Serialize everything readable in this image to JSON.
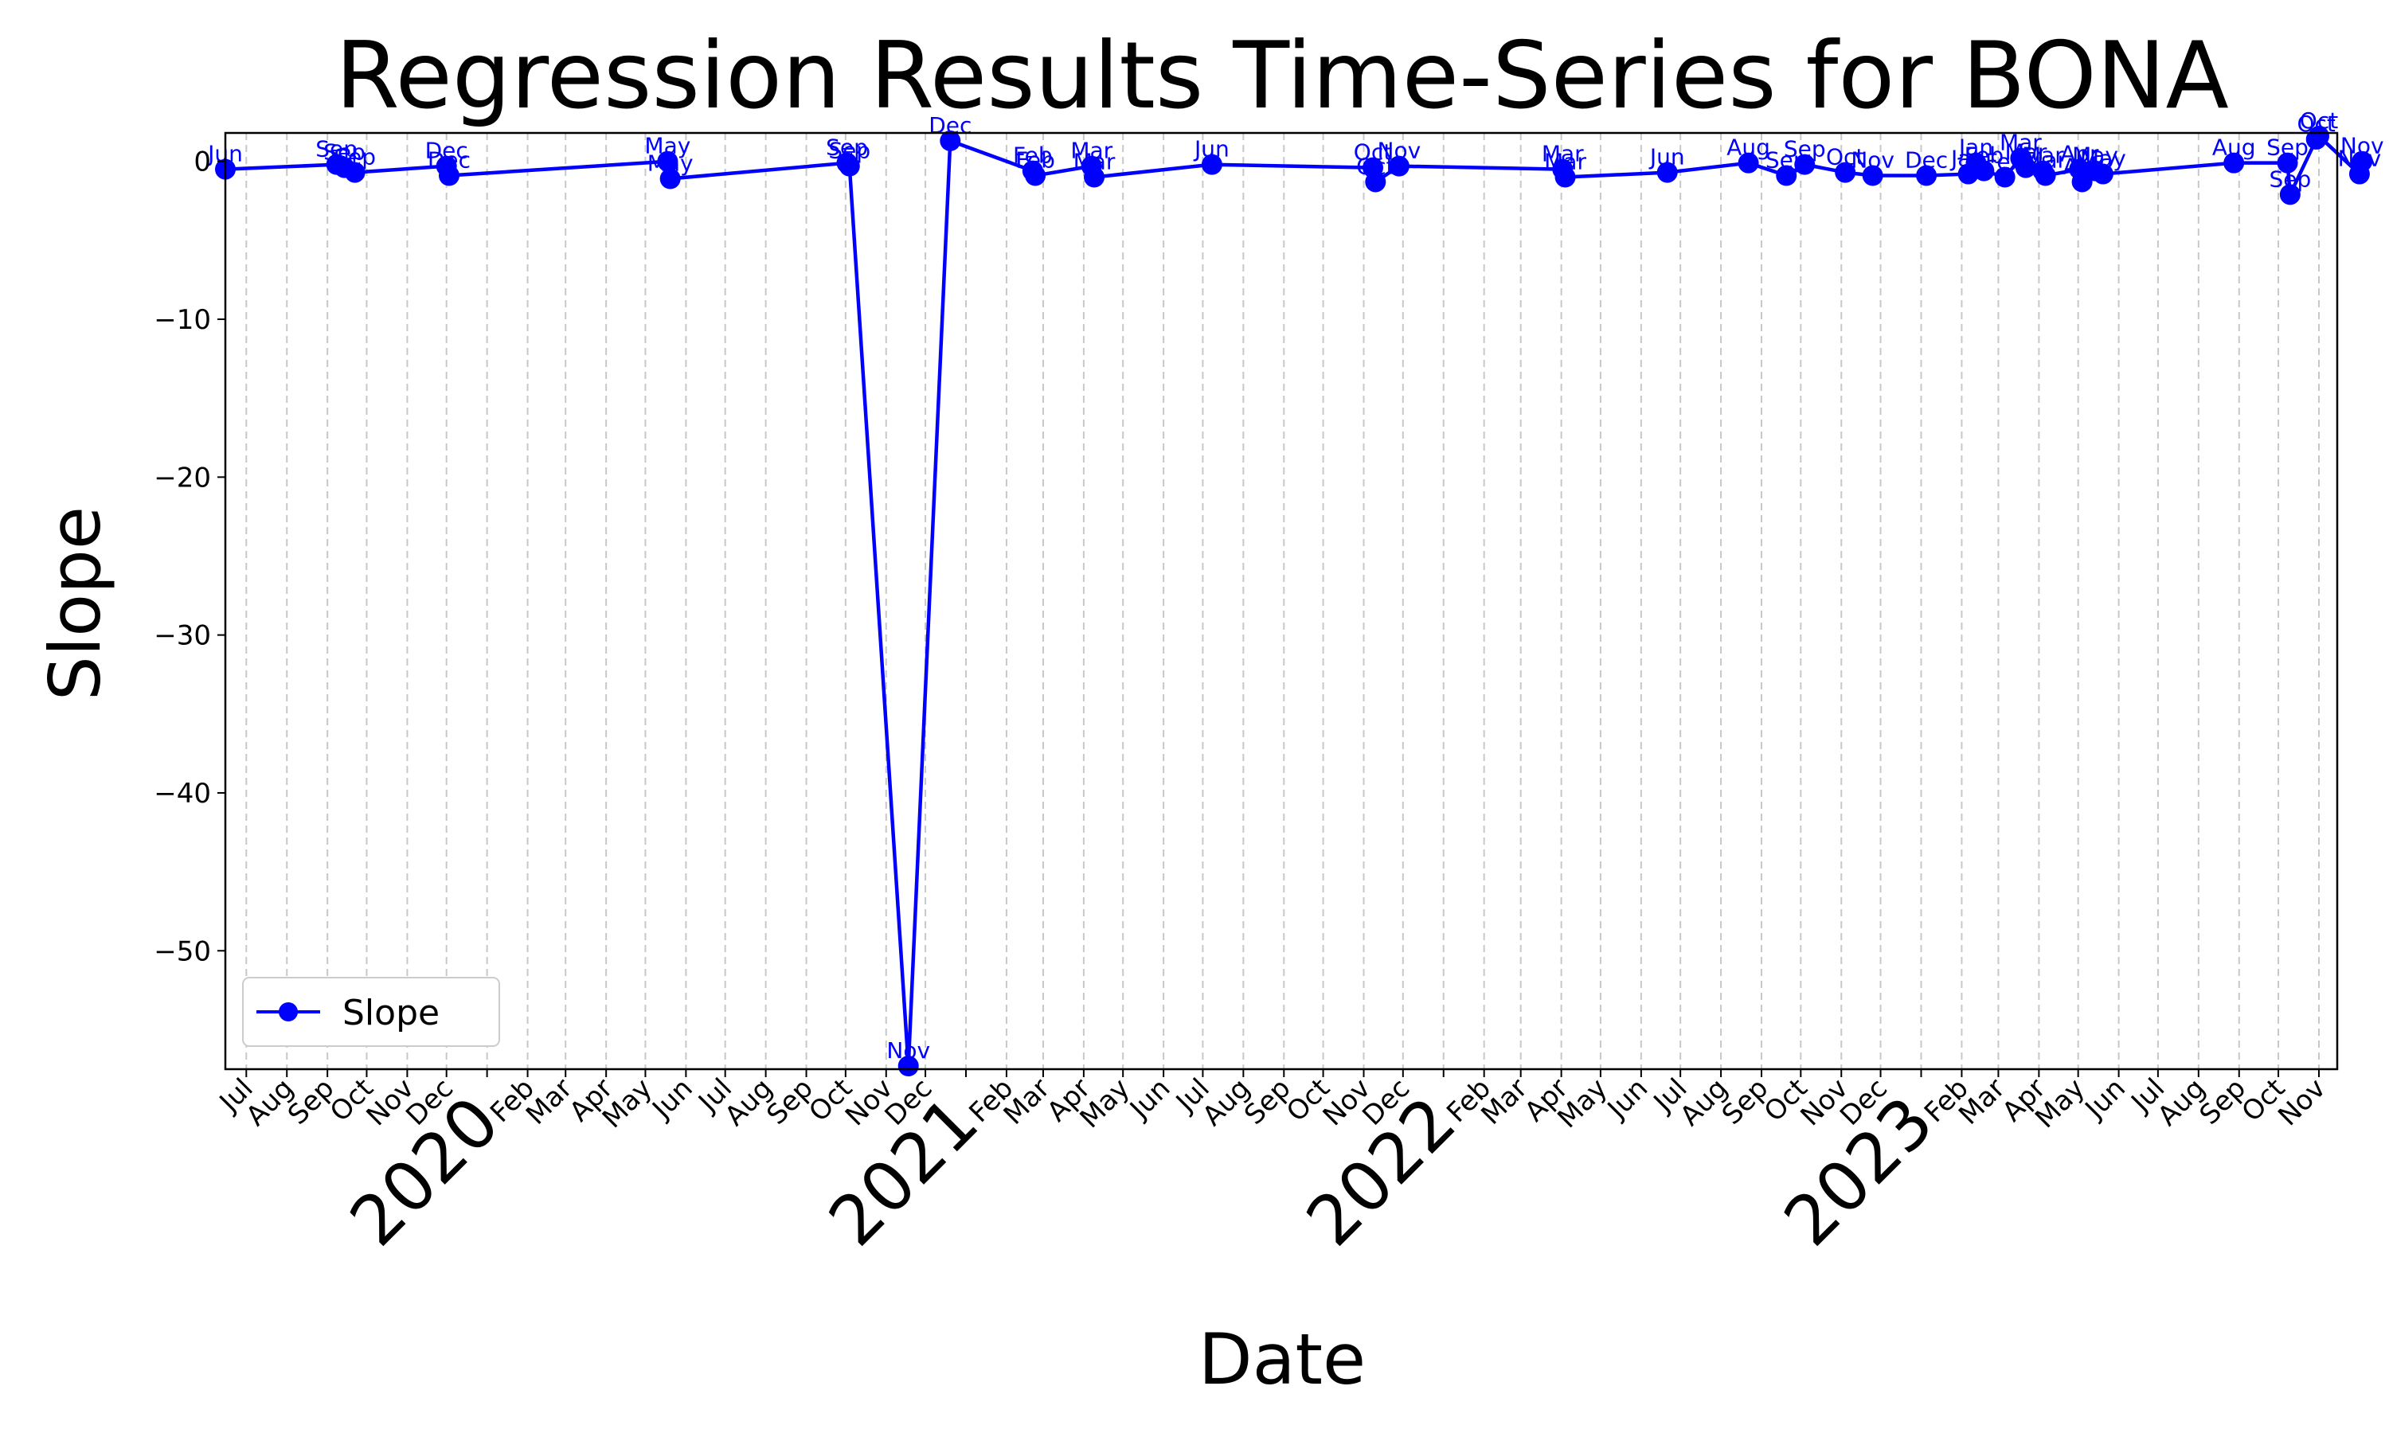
{
  "chart_data": {
    "type": "line",
    "title": "Regression Results Time-Series for BONA",
    "xlabel": "Date",
    "ylabel": "Slope",
    "ylim": [
      -57.5,
      1.8
    ],
    "xlim": [
      "2019-06-15",
      "2023-11-15"
    ],
    "yticks": [
      0,
      -10,
      -20,
      -30,
      -40,
      -50
    ],
    "ytick_labels": [
      "0",
      "−10",
      "−20",
      "−30",
      "−40",
      "−50"
    ],
    "grid": "vertical dashed at month ticks",
    "legend": {
      "position": "lower-left",
      "entries": [
        {
          "label": "Slope",
          "color": "#0000ff",
          "marker": "circle"
        }
      ]
    },
    "year_labels": [
      {
        "label": "2020",
        "date": "2020-01-01"
      },
      {
        "label": "2021",
        "date": "2021-01-01"
      },
      {
        "label": "2022",
        "date": "2022-01-01"
      },
      {
        "label": "2023",
        "date": "2023-01-01"
      }
    ],
    "month_ticks": [
      {
        "date": "2019-07-01",
        "label": "Jul"
      },
      {
        "date": "2019-08-01",
        "label": "Aug"
      },
      {
        "date": "2019-09-01",
        "label": "Sep"
      },
      {
        "date": "2019-10-01",
        "label": "Oct"
      },
      {
        "date": "2019-11-01",
        "label": "Nov"
      },
      {
        "date": "2019-12-01",
        "label": "Dec"
      },
      {
        "date": "2020-01-01",
        "label": ""
      },
      {
        "date": "2020-02-01",
        "label": "Feb"
      },
      {
        "date": "2020-03-01",
        "label": "Mar"
      },
      {
        "date": "2020-04-01",
        "label": "Apr"
      },
      {
        "date": "2020-05-01",
        "label": "May"
      },
      {
        "date": "2020-06-01",
        "label": "Jun"
      },
      {
        "date": "2020-07-01",
        "label": "Jul"
      },
      {
        "date": "2020-08-01",
        "label": "Aug"
      },
      {
        "date": "2020-09-01",
        "label": "Sep"
      },
      {
        "date": "2020-10-01",
        "label": "Oct"
      },
      {
        "date": "2020-11-01",
        "label": "Nov"
      },
      {
        "date": "2020-12-01",
        "label": "Dec"
      },
      {
        "date": "2021-01-01",
        "label": ""
      },
      {
        "date": "2021-02-01",
        "label": "Feb"
      },
      {
        "date": "2021-03-01",
        "label": "Mar"
      },
      {
        "date": "2021-04-01",
        "label": "Apr"
      },
      {
        "date": "2021-05-01",
        "label": "May"
      },
      {
        "date": "2021-06-01",
        "label": "Jun"
      },
      {
        "date": "2021-07-01",
        "label": "Jul"
      },
      {
        "date": "2021-08-01",
        "label": "Aug"
      },
      {
        "date": "2021-09-01",
        "label": "Sep"
      },
      {
        "date": "2021-10-01",
        "label": "Oct"
      },
      {
        "date": "2021-11-01",
        "label": "Nov"
      },
      {
        "date": "2021-12-01",
        "label": "Dec"
      },
      {
        "date": "2022-01-01",
        "label": ""
      },
      {
        "date": "2022-02-01",
        "label": "Feb"
      },
      {
        "date": "2022-03-01",
        "label": "Mar"
      },
      {
        "date": "2022-04-01",
        "label": "Apr"
      },
      {
        "date": "2022-05-01",
        "label": "May"
      },
      {
        "date": "2022-06-01",
        "label": "Jun"
      },
      {
        "date": "2022-07-01",
        "label": "Jul"
      },
      {
        "date": "2022-08-01",
        "label": "Aug"
      },
      {
        "date": "2022-09-01",
        "label": "Sep"
      },
      {
        "date": "2022-10-01",
        "label": "Oct"
      },
      {
        "date": "2022-11-01",
        "label": "Nov"
      },
      {
        "date": "2022-12-01",
        "label": "Dec"
      },
      {
        "date": "2023-01-01",
        "label": ""
      },
      {
        "date": "2023-02-01",
        "label": "Feb"
      },
      {
        "date": "2023-03-01",
        "label": "Mar"
      },
      {
        "date": "2023-04-01",
        "label": "Apr"
      },
      {
        "date": "2023-05-01",
        "label": "May"
      },
      {
        "date": "2023-06-01",
        "label": "Jun"
      },
      {
        "date": "2023-07-01",
        "label": "Jul"
      },
      {
        "date": "2023-08-01",
        "label": "Aug"
      },
      {
        "date": "2023-09-01",
        "label": "Sep"
      },
      {
        "date": "2023-10-01",
        "label": "Oct"
      },
      {
        "date": "2023-11-01",
        "label": "Nov"
      }
    ],
    "series": [
      {
        "name": "Slope",
        "color": "#0000ff",
        "points": [
          {
            "x": "2019-06-15",
            "y": -0.5,
            "label": "Jun"
          },
          {
            "x": "2019-09-08",
            "y": -0.2,
            "label": "Sep"
          },
          {
            "x": "2019-09-14",
            "y": -0.4,
            "label": "Sep"
          },
          {
            "x": "2019-09-22",
            "y": -0.7,
            "label": "Sep"
          },
          {
            "x": "2019-12-01",
            "y": -0.3,
            "label": "Dec"
          },
          {
            "x": "2019-12-03",
            "y": -0.9,
            "label": "Dec"
          },
          {
            "x": "2020-05-18",
            "y": 0.0,
            "label": "May"
          },
          {
            "x": "2020-05-20",
            "y": -1.1,
            "label": "May"
          },
          {
            "x": "2020-10-02",
            "y": -0.1,
            "label": "Sep"
          },
          {
            "x": "2020-10-04",
            "y": -0.3,
            "label": "Sep"
          },
          {
            "x": "2020-11-18",
            "y": -57.3,
            "label": "Nov"
          },
          {
            "x": "2020-12-20",
            "y": 1.3,
            "label": "Dec"
          },
          {
            "x": "2021-02-21",
            "y": -0.6,
            "label": "Feb"
          },
          {
            "x": "2021-02-23",
            "y": -0.9,
            "label": "Feb"
          },
          {
            "x": "2021-04-07",
            "y": -0.3,
            "label": "Mar"
          },
          {
            "x": "2021-04-09",
            "y": -1.0,
            "label": "Mar"
          },
          {
            "x": "2021-07-08",
            "y": -0.2,
            "label": "Jun"
          },
          {
            "x": "2021-11-08",
            "y": -0.4,
            "label": "Oct"
          },
          {
            "x": "2021-11-10",
            "y": -1.3,
            "label": "Oct"
          },
          {
            "x": "2021-11-28",
            "y": -0.3,
            "label": "Nov"
          },
          {
            "x": "2022-04-02",
            "y": -0.5,
            "label": "Mar"
          },
          {
            "x": "2022-04-04",
            "y": -1.0,
            "label": "Mar"
          },
          {
            "x": "2022-06-21",
            "y": -0.7,
            "label": "Jun"
          },
          {
            "x": "2022-08-22",
            "y": -0.1,
            "label": "Aug"
          },
          {
            "x": "2022-09-20",
            "y": -0.9,
            "label": "Sep"
          },
          {
            "x": "2022-10-04",
            "y": -0.2,
            "label": "Sep"
          },
          {
            "x": "2022-11-04",
            "y": -0.7,
            "label": "Oct"
          },
          {
            "x": "2022-11-25",
            "y": -0.9,
            "label": "Nov"
          },
          {
            "x": "2023-01-05",
            "y": -0.9,
            "label": "Dec"
          },
          {
            "x": "2023-02-06",
            "y": -0.8,
            "label": "Jan"
          },
          {
            "x": "2023-02-12",
            "y": -0.1,
            "label": "Jan"
          },
          {
            "x": "2023-02-18",
            "y": -0.6,
            "label": "Feb"
          },
          {
            "x": "2023-03-06",
            "y": -1.0,
            "label": "Feb"
          },
          {
            "x": "2023-03-18",
            "y": 0.2,
            "label": "Mar"
          },
          {
            "x": "2023-03-22",
            "y": -0.4,
            "label": "Mar"
          },
          {
            "x": "2023-04-04",
            "y": -0.6,
            "label": "Mar"
          },
          {
            "x": "2023-04-06",
            "y": -0.9,
            "label": "Mar"
          },
          {
            "x": "2023-05-02",
            "y": -0.5,
            "label": "Apr"
          },
          {
            "x": "2023-05-04",
            "y": -1.3,
            "label": "Apr"
          },
          {
            "x": "2023-05-14",
            "y": -0.6,
            "label": "May"
          },
          {
            "x": "2023-05-20",
            "y": -0.8,
            "label": "May"
          },
          {
            "x": "2023-08-28",
            "y": -0.1,
            "label": "Aug"
          },
          {
            "x": "2023-10-08",
            "y": -0.1,
            "label": "Sep"
          },
          {
            "x": "2023-10-10",
            "y": -2.1,
            "label": "Sep"
          },
          {
            "x": "2023-10-30",
            "y": 1.4,
            "label": "Oct"
          },
          {
            "x": "2023-11-01",
            "y": 1.6,
            "label": "Oct"
          },
          {
            "x": "2023-12-02",
            "y": -0.8,
            "label": "Nov"
          },
          {
            "x": "2023-12-04",
            "y": 0.0,
            "label": "Nov"
          }
        ]
      }
    ]
  }
}
